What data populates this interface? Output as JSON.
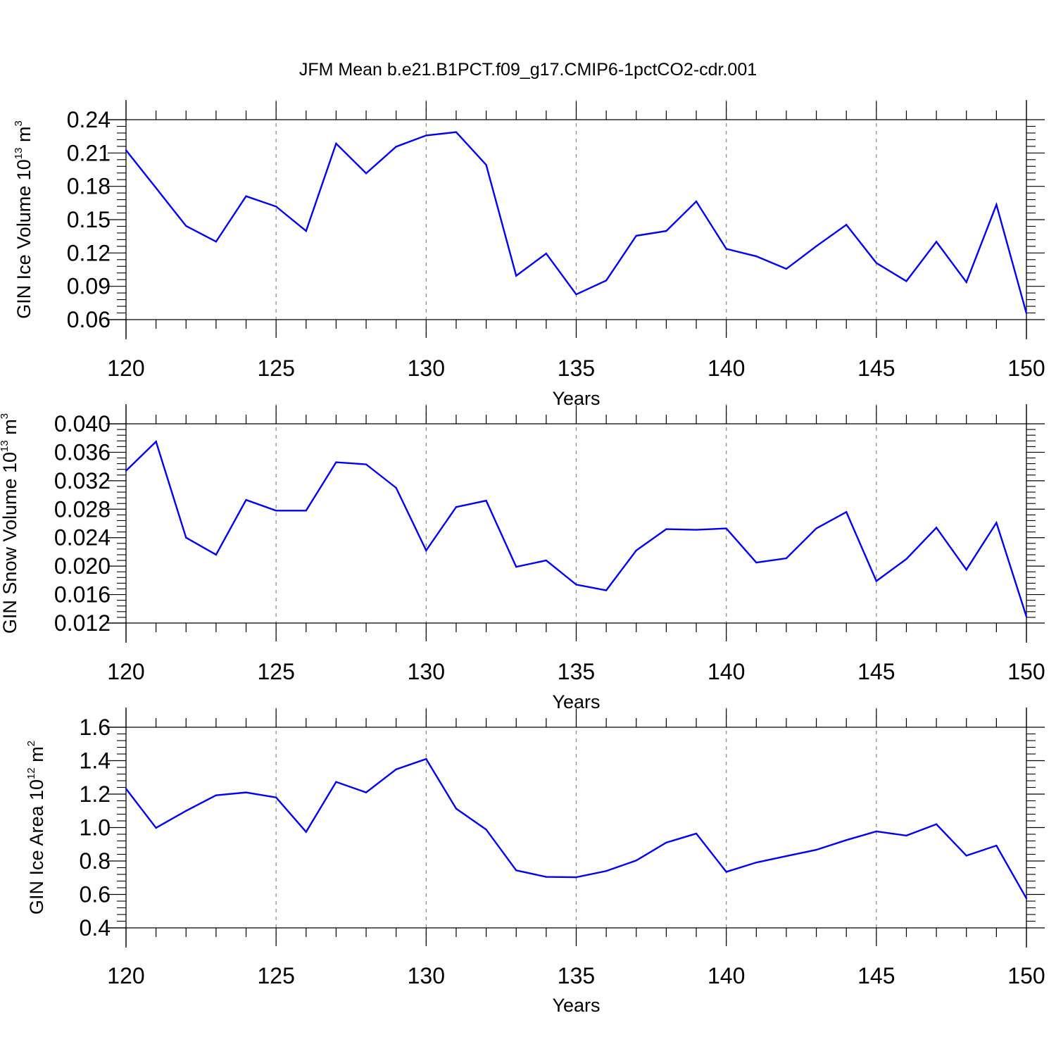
{
  "title": "JFM Mean b.e21.B1PCT.f09_g17.CMIP6-1pctCO2-cdr.001",
  "colors": {
    "line": "#0000ff",
    "axes": "#000000",
    "grid": "#888888"
  },
  "chart_data": [
    {
      "type": "line",
      "ylabel": {
        "text": "GIN Ice Volume 10",
        "sup": "13",
        "unit": " m",
        "unit_sup": "3"
      },
      "xlabel": "Years",
      "xlim": [
        120,
        150
      ],
      "ylim": [
        0.06,
        0.24
      ],
      "yticks": [
        "0.06",
        "0.09",
        "0.12",
        "0.15",
        "0.18",
        "0.21",
        "0.24"
      ],
      "xticks": [
        "120",
        "125",
        "130",
        "135",
        "140",
        "145",
        "150"
      ],
      "grid": "vertical dashed at major x ticks",
      "x": [
        120,
        121,
        122,
        123,
        124,
        125,
        126,
        127,
        128,
        129,
        130,
        131,
        132,
        133,
        134,
        135,
        136,
        137,
        138,
        139,
        140,
        141,
        142,
        143,
        144,
        145,
        146,
        147,
        148,
        149,
        150
      ],
      "values": [
        0.2125,
        0.1785,
        0.1443,
        0.1302,
        0.1711,
        0.1618,
        0.1398,
        0.2185,
        0.1917,
        0.2157,
        0.2258,
        0.2288,
        0.1993,
        0.0995,
        0.1195,
        0.0827,
        0.0952,
        0.1355,
        0.1398,
        0.1664,
        0.1237,
        0.117,
        0.1057,
        0.1261,
        0.1454,
        0.111,
        0.0946,
        0.1301,
        0.0937,
        0.1635,
        0.0657
      ]
    },
    {
      "type": "line",
      "ylabel": {
        "text": "GIN Snow Volume 10",
        "sup": "13",
        "unit": " m",
        "unit_sup": "3"
      },
      "xlabel": "Years",
      "xlim": [
        120,
        150
      ],
      "ylim": [
        0.012,
        0.04
      ],
      "yticks": [
        "0.012",
        "0.016",
        "0.020",
        "0.024",
        "0.028",
        "0.032",
        "0.036",
        "0.040"
      ],
      "xticks": [
        "120",
        "125",
        "130",
        "135",
        "140",
        "145",
        "150"
      ],
      "grid": "vertical dashed at major x ticks",
      "x": [
        120,
        121,
        122,
        123,
        124,
        125,
        126,
        127,
        128,
        129,
        130,
        131,
        132,
        133,
        134,
        135,
        136,
        137,
        138,
        139,
        140,
        141,
        142,
        143,
        144,
        145,
        146,
        147,
        148,
        149,
        150
      ],
      "values": [
        0.0334,
        0.0375,
        0.024,
        0.0216,
        0.0293,
        0.0278,
        0.0278,
        0.0346,
        0.0343,
        0.031,
        0.0222,
        0.0283,
        0.0292,
        0.0199,
        0.0208,
        0.0174,
        0.0166,
        0.0222,
        0.0252,
        0.0251,
        0.0253,
        0.0205,
        0.0211,
        0.0253,
        0.0276,
        0.0179,
        0.021,
        0.0254,
        0.0195,
        0.0261,
        0.0129
      ]
    },
    {
      "type": "line",
      "ylabel": {
        "text": "GIN Ice Area 10",
        "sup": "12",
        "unit": " m",
        "unit_sup": "2"
      },
      "xlabel": "Years",
      "xlim": [
        120,
        150
      ],
      "ylim": [
        0.4,
        1.6
      ],
      "yticks": [
        "0.4",
        "0.6",
        "0.8",
        "1.0",
        "1.2",
        "1.4",
        "1.6"
      ],
      "xticks": [
        "120",
        "125",
        "130",
        "135",
        "140",
        "145",
        "150"
      ],
      "grid": "vertical dashed at major x ticks",
      "x": [
        120,
        121,
        122,
        123,
        124,
        125,
        126,
        127,
        128,
        129,
        130,
        131,
        132,
        133,
        134,
        135,
        136,
        137,
        138,
        139,
        140,
        141,
        142,
        143,
        144,
        145,
        146,
        147,
        148,
        149,
        150
      ],
      "values": [
        1.232,
        0.998,
        1.1,
        1.193,
        1.21,
        1.18,
        0.974,
        1.273,
        1.21,
        1.348,
        1.41,
        1.113,
        0.988,
        0.744,
        0.705,
        0.703,
        0.74,
        0.803,
        0.91,
        0.964,
        0.735,
        0.791,
        0.829,
        0.867,
        0.925,
        0.977,
        0.952,
        1.02,
        0.832,
        0.892,
        0.576
      ]
    }
  ]
}
